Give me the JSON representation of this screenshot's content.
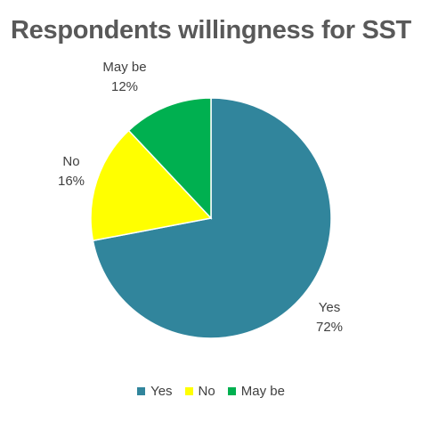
{
  "chart_data": {
    "type": "pie",
    "title": "Respondents willingness for SST",
    "categories": [
      "Yes",
      "No",
      "May be"
    ],
    "values": [
      72,
      16,
      12
    ],
    "value_labels": [
      "72%",
      "16%",
      "12%"
    ],
    "colors": [
      "#31859C",
      "#FFFF00",
      "#00B050"
    ],
    "legend_position": "bottom",
    "start": "top, clockwise from Yes"
  },
  "legend": {
    "items": [
      {
        "label": "Yes",
        "color": "#31859C"
      },
      {
        "label": "No",
        "color": "#FFFF00"
      },
      {
        "label": "May be",
        "color": "#00B050"
      }
    ]
  }
}
